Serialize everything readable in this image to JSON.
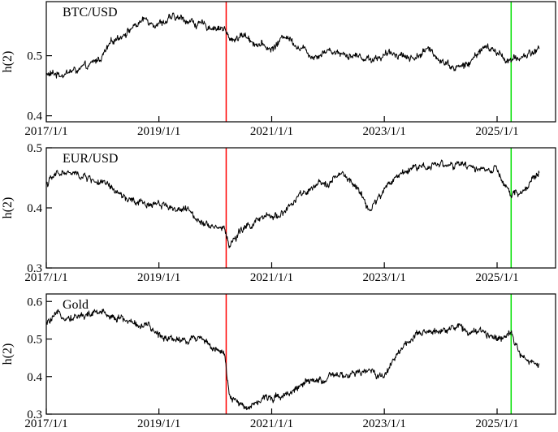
{
  "chart_data": [
    {
      "type": "line",
      "title": "BTC/USD",
      "ylabel": "h(2)",
      "ylim": [
        0.39,
        0.59
      ],
      "yticks": [
        0.4,
        0.5
      ],
      "xticks": [
        "2017/1/1",
        "2019/1/1",
        "2021/1/1",
        "2023/1/1",
        "2025/1/1"
      ],
      "xlim": [
        "2017-01-01",
        "2026-01-15"
      ],
      "vlines": [
        {
          "date": "2020-03-12",
          "color": "#ff0000"
        },
        {
          "date": "2025-04-02",
          "color": "#00e000"
        }
      ],
      "series": [
        {
          "x": [
            "2017-01-01",
            "2017-04-01",
            "2017-07-01",
            "2017-10-01",
            "2018-01-01",
            "2018-04-01",
            "2018-07-01",
            "2018-10-01",
            "2019-01-01",
            "2019-04-01",
            "2019-07-01",
            "2019-10-01",
            "2020-01-01",
            "2020-03-01",
            "2020-04-01",
            "2020-07-01",
            "2020-10-01",
            "2021-01-01",
            "2021-04-01",
            "2021-07-01",
            "2021-10-01",
            "2022-01-01",
            "2022-04-01",
            "2022-07-01",
            "2022-10-01",
            "2023-01-01",
            "2023-04-01",
            "2023-07-01",
            "2023-10-01",
            "2024-01-01",
            "2024-04-01",
            "2024-07-01",
            "2024-10-01",
            "2025-01-01",
            "2025-04-01",
            "2025-07-01",
            "2025-10-01"
          ],
          "values": [
            0.468,
            0.47,
            0.475,
            0.48,
            0.5,
            0.53,
            0.545,
            0.56,
            0.555,
            0.562,
            0.56,
            0.55,
            0.548,
            0.545,
            0.525,
            0.535,
            0.52,
            0.51,
            0.535,
            0.515,
            0.5,
            0.51,
            0.505,
            0.5,
            0.495,
            0.5,
            0.505,
            0.495,
            0.51,
            0.495,
            0.48,
            0.485,
            0.515,
            0.505,
            0.49,
            0.5,
            0.512
          ]
        }
      ]
    },
    {
      "type": "line",
      "title": "EUR/USD",
      "ylabel": "h(2)",
      "ylim": [
        0.3,
        0.5
      ],
      "yticks": [
        0.3,
        0.4,
        0.5
      ],
      "xticks": [
        "2017/1/1",
        "2019/1/1",
        "2021/1/1",
        "2023/1/1",
        "2025/1/1"
      ],
      "xlim": [
        "2017-01-01",
        "2026-01-15"
      ],
      "vlines": [
        {
          "date": "2020-03-12",
          "color": "#ff0000"
        },
        {
          "date": "2025-04-02",
          "color": "#00e000"
        }
      ],
      "series": [
        {
          "x": [
            "2017-01-01",
            "2017-04-01",
            "2017-07-01",
            "2017-10-01",
            "2018-01-01",
            "2018-04-01",
            "2018-07-01",
            "2018-10-01",
            "2019-01-01",
            "2019-04-01",
            "2019-07-01",
            "2019-10-01",
            "2020-01-01",
            "2020-03-01",
            "2020-04-01",
            "2020-07-01",
            "2020-10-01",
            "2021-01-01",
            "2021-04-01",
            "2021-07-01",
            "2021-10-01",
            "2022-01-01",
            "2022-04-01",
            "2022-07-01",
            "2022-10-01",
            "2023-01-01",
            "2023-04-01",
            "2023-07-01",
            "2023-10-01",
            "2024-01-01",
            "2024-04-01",
            "2024-07-01",
            "2024-10-01",
            "2025-01-01",
            "2025-04-01",
            "2025-07-01",
            "2025-10-01"
          ],
          "values": [
            0.44,
            0.46,
            0.455,
            0.45,
            0.44,
            0.425,
            0.41,
            0.405,
            0.41,
            0.4,
            0.395,
            0.38,
            0.37,
            0.365,
            0.338,
            0.365,
            0.378,
            0.385,
            0.395,
            0.42,
            0.43,
            0.445,
            0.455,
            0.435,
            0.395,
            0.43,
            0.455,
            0.468,
            0.47,
            0.475,
            0.47,
            0.468,
            0.465,
            0.46,
            0.418,
            0.43,
            0.46
          ]
        }
      ]
    },
    {
      "type": "line",
      "title": "Gold",
      "ylabel": "h(2)",
      "ylim": [
        0.3,
        0.62
      ],
      "yticks": [
        0.3,
        0.4,
        0.5,
        0.6
      ],
      "xticks": [
        "2017/1/1",
        "2019/1/1",
        "2021/1/1",
        "2023/1/1",
        "2025/1/1"
      ],
      "xlim": [
        "2017-01-01",
        "2026-01-15"
      ],
      "vlines": [
        {
          "date": "2020-03-12",
          "color": "#ff0000"
        },
        {
          "date": "2025-04-02",
          "color": "#00e000"
        }
      ],
      "series": [
        {
          "x": [
            "2017-01-01",
            "2017-04-01",
            "2017-07-01",
            "2017-10-01",
            "2018-01-01",
            "2018-04-01",
            "2018-07-01",
            "2018-10-01",
            "2019-01-01",
            "2019-04-01",
            "2019-07-01",
            "2019-10-01",
            "2020-01-01",
            "2020-03-01",
            "2020-04-01",
            "2020-07-01",
            "2020-10-01",
            "2021-01-01",
            "2021-04-01",
            "2021-07-01",
            "2021-10-01",
            "2022-01-01",
            "2022-04-01",
            "2022-07-01",
            "2022-10-01",
            "2023-01-01",
            "2023-04-01",
            "2023-07-01",
            "2023-10-01",
            "2024-01-01",
            "2024-04-01",
            "2024-07-01",
            "2024-10-01",
            "2025-01-01",
            "2025-04-01",
            "2025-07-01",
            "2025-10-01"
          ],
          "values": [
            0.54,
            0.565,
            0.56,
            0.565,
            0.57,
            0.56,
            0.545,
            0.535,
            0.51,
            0.505,
            0.495,
            0.51,
            0.47,
            0.455,
            0.345,
            0.32,
            0.335,
            0.345,
            0.355,
            0.375,
            0.385,
            0.395,
            0.4,
            0.405,
            0.415,
            0.4,
            0.47,
            0.5,
            0.515,
            0.525,
            0.535,
            0.52,
            0.515,
            0.505,
            0.52,
            0.44,
            0.43
          ]
        }
      ]
    }
  ]
}
